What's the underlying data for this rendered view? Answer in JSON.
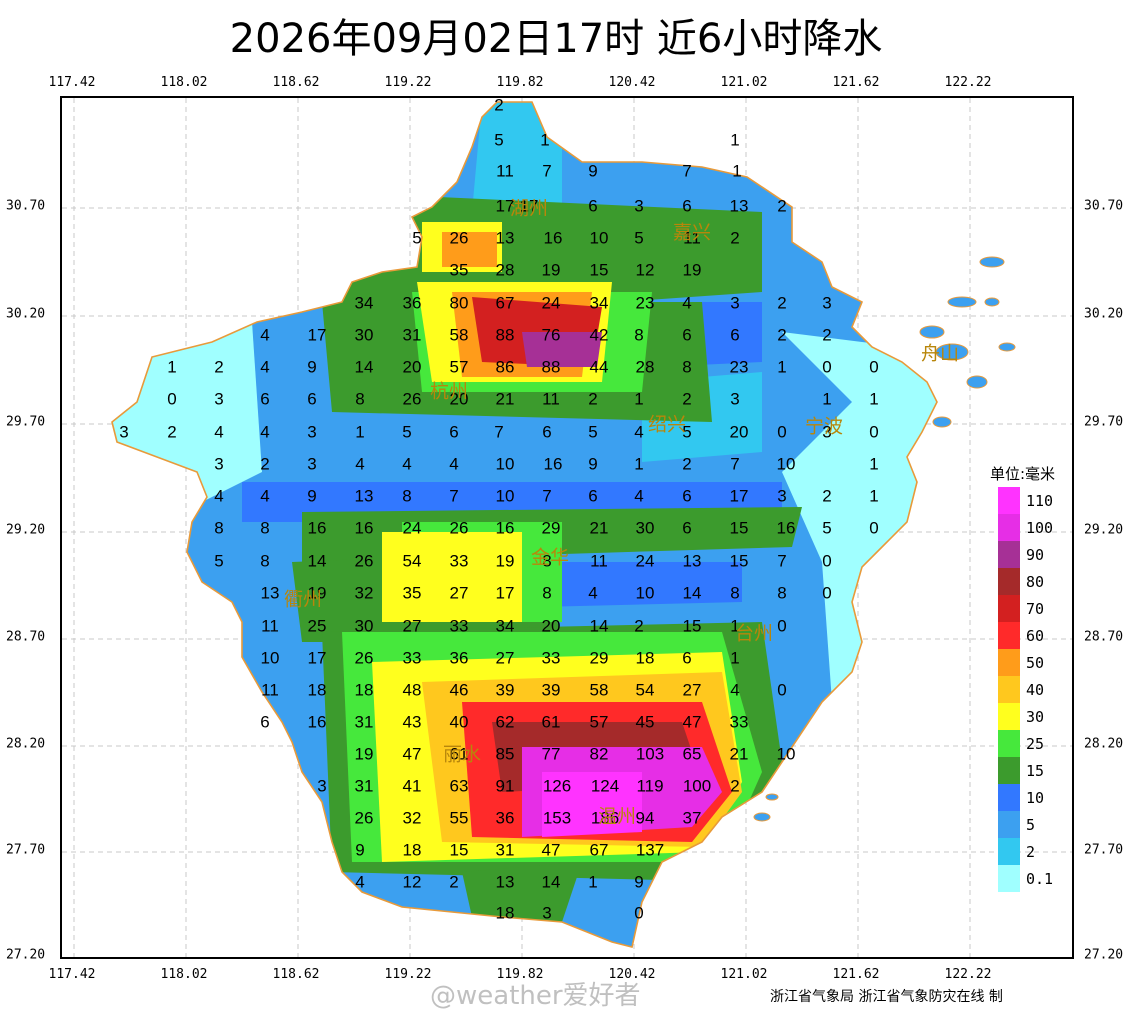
{
  "title": "2026年09月02日17时  近6小时降水",
  "longitude_ticks": [
    "117.42",
    "118.02",
    "118.62",
    "119.22",
    "119.82",
    "120.42",
    "121.02",
    "121.62",
    "122.22"
  ],
  "latitude_ticks": [
    "30.70",
    "30.20",
    "29.70",
    "29.20",
    "28.70",
    "28.20",
    "27.70",
    "27.20"
  ],
  "legend": {
    "unit": "单位:毫米",
    "levels": [
      {
        "label": "110",
        "color": "#ff33ff"
      },
      {
        "label": "100",
        "color": "#e62ee6"
      },
      {
        "label": "90",
        "color": "#a63096"
      },
      {
        "label": "80",
        "color": "#a52a2a"
      },
      {
        "label": "70",
        "color": "#d32020"
      },
      {
        "label": "60",
        "color": "#ff2a2a"
      },
      {
        "label": "50",
        "color": "#ff9c1a"
      },
      {
        "label": "40",
        "color": "#ffc81e"
      },
      {
        "label": "30",
        "color": "#ffff1e"
      },
      {
        "label": "25",
        "color": "#46e83c"
      },
      {
        "label": "15",
        "color": "#3c9b2d"
      },
      {
        "label": "10",
        "color": "#3278ff"
      },
      {
        "label": "5",
        "color": "#3ca0f0"
      },
      {
        "label": "2",
        "color": "#32c8f0"
      },
      {
        "label": "0.1",
        "color": "#a0ffff"
      }
    ]
  },
  "cities": [
    "湖州",
    "嘉兴",
    "杭州",
    "绍兴",
    "宁波",
    "舟山",
    "金华",
    "衢州",
    "台州",
    "丽水",
    "温州"
  ],
  "rain_values": [
    "2",
    "5",
    "1",
    "1",
    "11",
    "7",
    "9",
    "7",
    "1",
    "17",
    "17",
    "6",
    "3",
    "6",
    "13",
    "2",
    "5",
    "26",
    "13",
    "16",
    "10",
    "5",
    "11",
    "2",
    "35",
    "28",
    "19",
    "15",
    "12",
    "19",
    "34",
    "36",
    "80",
    "67",
    "24",
    "34",
    "23",
    "4",
    "3",
    "2",
    "3",
    "4",
    "17",
    "30",
    "31",
    "58",
    "88",
    "76",
    "42",
    "8",
    "6",
    "6",
    "2",
    "2",
    "1",
    "2",
    "4",
    "9",
    "14",
    "20",
    "57",
    "86",
    "88",
    "44",
    "28",
    "8",
    "23",
    "1",
    "0",
    "0",
    "0",
    "3",
    "6",
    "6",
    "8",
    "26",
    "20",
    "21",
    "11",
    "2",
    "1",
    "2",
    "3",
    "1",
    "1",
    "3",
    "2",
    "4",
    "4",
    "3",
    "1",
    "5",
    "6",
    "7",
    "6",
    "5",
    "4",
    "5",
    "20",
    "0",
    "3",
    "0",
    "3",
    "2",
    "3",
    "4",
    "4",
    "4",
    "10",
    "16",
    "9",
    "1",
    "2",
    "7",
    "10",
    "1",
    "4",
    "4",
    "9",
    "13",
    "8",
    "7",
    "10",
    "7",
    "6",
    "4",
    "6",
    "17",
    "3",
    "2",
    "1",
    "8",
    "8",
    "16",
    "16",
    "24",
    "26",
    "16",
    "29",
    "21",
    "30",
    "6",
    "15",
    "16",
    "5",
    "0",
    "5",
    "8",
    "14",
    "26",
    "54",
    "33",
    "19",
    "8",
    "11",
    "24",
    "13",
    "15",
    "7",
    "0",
    "13",
    "19",
    "32",
    "35",
    "27",
    "17",
    "8",
    "4",
    "10",
    "14",
    "8",
    "8",
    "0",
    "11",
    "25",
    "30",
    "27",
    "33",
    "34",
    "20",
    "14",
    "2",
    "15",
    "1",
    "0",
    "10",
    "17",
    "26",
    "33",
    "36",
    "27",
    "33",
    "29",
    "18",
    "6",
    "1",
    "11",
    "18",
    "18",
    "48",
    "46",
    "39",
    "39",
    "58",
    "54",
    "27",
    "4",
    "0",
    "6",
    "16",
    "31",
    "43",
    "40",
    "62",
    "61",
    "57",
    "45",
    "47",
    "33",
    "19",
    "47",
    "61",
    "85",
    "77",
    "82",
    "103",
    "65",
    "21",
    "10",
    "3",
    "31",
    "41",
    "63",
    "91",
    "126",
    "124",
    "119",
    "100",
    "2",
    "26",
    "32",
    "55",
    "36",
    "153",
    "186",
    "94",
    "37",
    "9",
    "18",
    "15",
    "31",
    "47",
    "67",
    "137",
    "4",
    "12",
    "2",
    "13",
    "14",
    "1",
    "9",
    "18",
    "3",
    "0"
  ],
  "credit": "浙江省气象局 浙江省气象防灾在线 制",
  "watermark": "@weather爱好者"
}
